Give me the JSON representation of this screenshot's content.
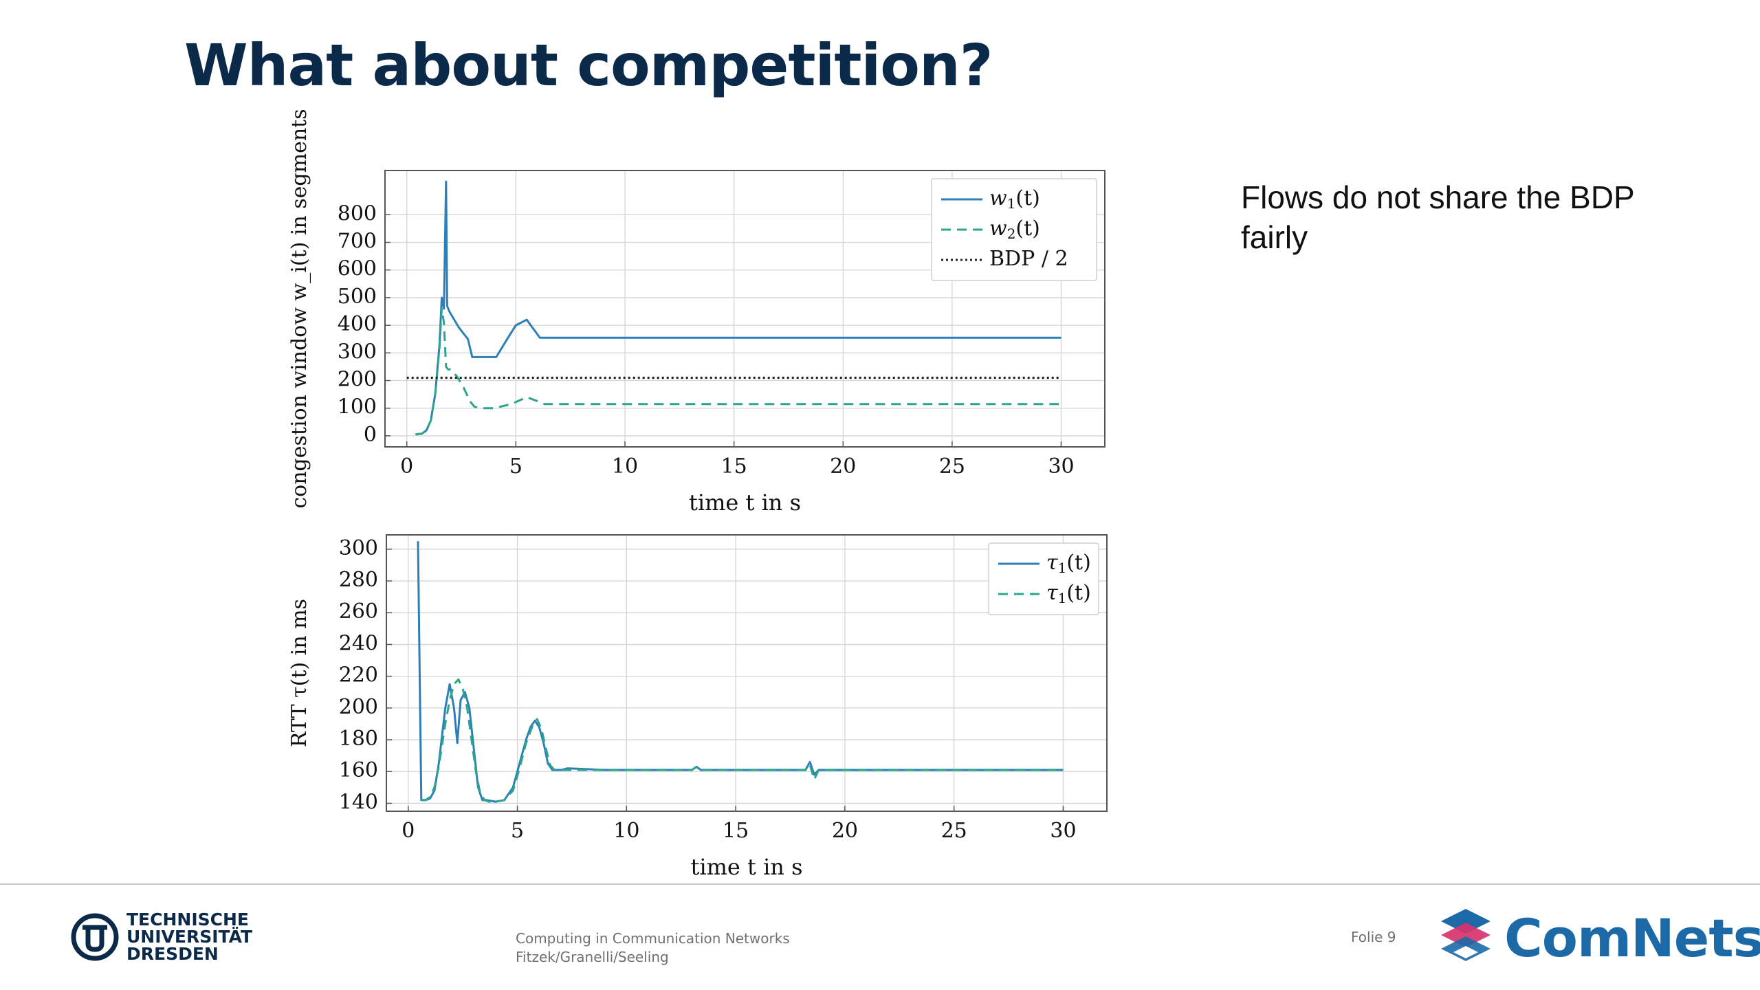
{
  "slide": {
    "title": "What about competition?",
    "note": "Flows do not share the BDP fairly"
  },
  "footer": {
    "university_lines": [
      "TECHNISCHE",
      "UNIVERSITÄT",
      "DRESDEN"
    ],
    "course_lines": [
      "Computing in Communication Networks",
      "Fitzek/Granelli/Seeling"
    ],
    "slide_number": "Folie 9",
    "brand": "ComNets"
  },
  "colors": {
    "title": "#0b2a4a",
    "series_blue": "#2d7fb8",
    "series_green": "#2ca58d",
    "bdp_black": "#222222",
    "brand_blue": "#1b6aa7"
  },
  "chart_data": [
    {
      "id": "cwnd",
      "type": "line",
      "xlabel": "time t in s",
      "ylabel": "congestion window w_i(t) in segments",
      "xlim": [
        -1,
        32
      ],
      "ylim": [
        -40,
        960
      ],
      "xticks": [
        0,
        5,
        10,
        15,
        20,
        25,
        30
      ],
      "yticks": [
        0,
        100,
        200,
        300,
        400,
        500,
        600,
        700,
        800
      ],
      "grid": true,
      "legend_position": "top-right",
      "series": [
        {
          "name": "w1(t)",
          "style": "solid",
          "color": "#2d7fb8",
          "x": [
            0.4,
            0.7,
            0.9,
            1.1,
            1.3,
            1.5,
            1.6,
            1.7,
            1.8,
            1.85,
            1.95,
            2.1,
            2.4,
            2.8,
            3.0,
            3.5,
            4.1,
            4.6,
            5.0,
            5.5,
            6.1,
            30
          ],
          "y": [
            5,
            8,
            20,
            55,
            150,
            330,
            500,
            460,
            920,
            470,
            450,
            430,
            390,
            350,
            285,
            285,
            285,
            350,
            400,
            420,
            355,
            355
          ]
        },
        {
          "name": "w2(t)",
          "style": "dashed",
          "color": "#2ca58d",
          "x": [
            0.4,
            0.7,
            0.9,
            1.1,
            1.3,
            1.5,
            1.6,
            1.7,
            1.8,
            1.9,
            2.0,
            2.3,
            2.6,
            2.9,
            3.1,
            3.4,
            4.0,
            4.8,
            5.5,
            6.0,
            6.3,
            30
          ],
          "y": [
            5,
            8,
            20,
            55,
            150,
            320,
            460,
            410,
            250,
            240,
            240,
            215,
            175,
            125,
            105,
            100,
            100,
            115,
            140,
            125,
            115,
            115
          ]
        },
        {
          "name": "BDP / 2",
          "style": "dotted",
          "color": "#222222",
          "x": [
            0,
            30
          ],
          "y": [
            210,
            210
          ]
        }
      ]
    },
    {
      "id": "rtt",
      "type": "line",
      "xlabel": "time t in s",
      "ylabel": "RTT τ(t) in ms",
      "xlim": [
        -1,
        32
      ],
      "ylim": [
        135,
        309
      ],
      "xticks": [
        0,
        5,
        10,
        15,
        20,
        25,
        30
      ],
      "yticks": [
        140,
        160,
        180,
        200,
        220,
        240,
        260,
        280,
        300
      ],
      "grid": true,
      "legend_position": "top-right",
      "series": [
        {
          "name": "τ1(t)",
          "style": "solid",
          "color": "#2d7fb8",
          "x": [
            0.45,
            0.5,
            0.6,
            0.8,
            1.0,
            1.2,
            1.4,
            1.7,
            1.9,
            2.1,
            2.25,
            2.4,
            2.6,
            2.8,
            3.0,
            3.2,
            3.4,
            3.6,
            4.0,
            4.4,
            4.8,
            5.1,
            5.4,
            5.6,
            5.8,
            6.0,
            6.2,
            6.4,
            6.6,
            7.0,
            7.3,
            9.0,
            13.0,
            13.2,
            13.4,
            18.2,
            18.4,
            18.6,
            18.8,
            30
          ],
          "y": [
            305,
            250,
            142,
            142,
            143,
            148,
            165,
            200,
            215,
            200,
            178,
            205,
            210,
            200,
            175,
            150,
            142,
            142,
            141,
            142,
            150,
            165,
            180,
            188,
            192,
            188,
            178,
            165,
            161,
            161,
            162,
            161,
            161,
            163,
            161,
            161,
            166,
            158,
            161,
            161
          ]
        },
        {
          "name": "τ1(t)",
          "style": "dashed",
          "color": "#2ca58d",
          "x": [
            0.6,
            0.8,
            1.0,
            1.2,
            1.4,
            1.7,
            1.9,
            2.1,
            2.3,
            2.5,
            2.7,
            2.9,
            3.1,
            3.3,
            3.5,
            3.7,
            4.0,
            4.4,
            4.8,
            5.1,
            5.4,
            5.7,
            5.9,
            6.1,
            6.3,
            6.5,
            6.7,
            7.0,
            13.0,
            13.2,
            13.4,
            18.2,
            18.4,
            18.6,
            18.8,
            30
          ],
          "y": [
            142,
            142,
            144,
            150,
            163,
            190,
            205,
            215,
            218,
            212,
            200,
            180,
            160,
            146,
            142,
            141,
            141,
            142,
            148,
            162,
            178,
            189,
            193,
            187,
            175,
            164,
            161,
            161,
            161,
            163,
            161,
            161,
            164,
            155,
            161,
            161
          ]
        }
      ]
    }
  ]
}
